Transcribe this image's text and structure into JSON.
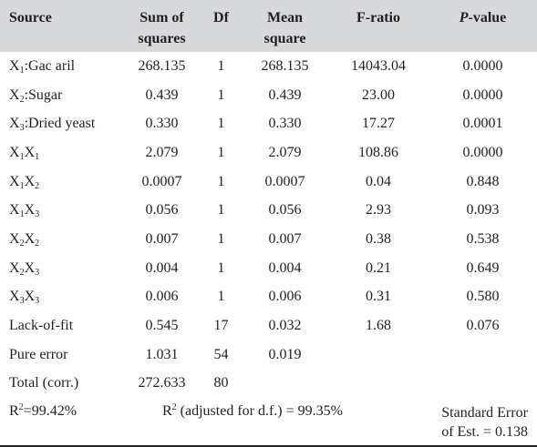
{
  "header": {
    "source": "Source",
    "sum_sq_1": "Sum of",
    "sum_sq_2": "squares",
    "df": "Df",
    "mean_sq_1": "Mean",
    "mean_sq_2": "square",
    "f_ratio": "F-ratio",
    "p_value_p": "P",
    "p_value_rest": "-value"
  },
  "rows": [
    {
      "src_main": "X",
      "src_sub": "1",
      "src_rest": ":Gac aril",
      "ss": "268.135",
      "df": "1",
      "ms": "268.135",
      "f": "14043.04",
      "p": "0.0000"
    },
    {
      "src_main": "X",
      "src_sub": "2",
      "src_rest": ":Sugar",
      "ss": "0.439",
      "df": "1",
      "ms": "0.439",
      "f": "23.00",
      "p": "0.0000"
    },
    {
      "src_main": "X",
      "src_sub": "3",
      "src_rest": ":Dried yeast",
      "ss": "0.330",
      "df": "1",
      "ms": "0.330",
      "f": "17.27",
      "p": "0.0001"
    },
    {
      "src_main": "X",
      "src_sub": "1",
      "src_main2": "X",
      "src_sub2": "1",
      "ss": "2.079",
      "df": "1",
      "ms": "2.079",
      "f": "108.86",
      "p": "0.0000"
    },
    {
      "src_main": "X",
      "src_sub": "1",
      "src_main2": "X",
      "src_sub2": "2",
      "ss": "0.0007",
      "df": "1",
      "ms": "0.0007",
      "f": "0.04",
      "p": "0.848"
    },
    {
      "src_main": "X",
      "src_sub": "1",
      "src_main2": "X",
      "src_sub2": "3",
      "ss": "0.056",
      "df": "1",
      "ms": "0.056",
      "f": "2.93",
      "p": "0.093"
    },
    {
      "src_main": "X",
      "src_sub": "2",
      "src_main2": "X",
      "src_sub2": "2",
      "ss": "0.007",
      "df": "1",
      "ms": "0.007",
      "f": "0.38",
      "p": "0.538"
    },
    {
      "src_main": "X",
      "src_sub": "2",
      "src_main2": "X",
      "src_sub2": "3",
      "ss": "0.004",
      "df": "1",
      "ms": "0.004",
      "f": "0.21",
      "p": "0.649"
    },
    {
      "src_main": "X",
      "src_sub": "3",
      "src_main2": "X",
      "src_sub2": "3",
      "ss": "0.006",
      "df": "1",
      "ms": "0.006",
      "f": "0.31",
      "p": "0.580"
    },
    {
      "src_main": "Lack-of-fit",
      "ss": "0.545",
      "df": "17",
      "ms": "0.032",
      "f": "1.68",
      "p": "0.076"
    },
    {
      "src_main": "Pure error",
      "ss": "1.031",
      "df": "54",
      "ms": "0.019",
      "f": "",
      "p": ""
    },
    {
      "src_main": "Total (corr.)",
      "ss": "272.633",
      "df": "80",
      "ms": "",
      "f": "",
      "p": ""
    }
  ],
  "footer": {
    "r2_base": "R",
    "r2_sup": "2",
    "r2_value": "=99.42%",
    "adj_base": "R",
    "adj_sup": "2",
    "adj_value": " (adjusted for d.f.) = 99.35%",
    "se_line1": "Standard Error",
    "se_line2": "of Est. = 0.138"
  },
  "colors": {
    "header_bg": "#d8d9da",
    "text": "#231f20"
  }
}
